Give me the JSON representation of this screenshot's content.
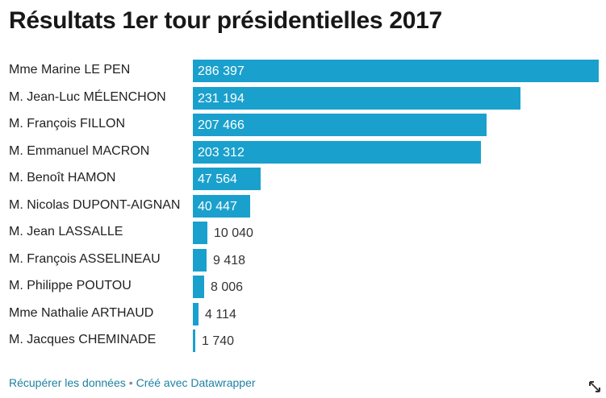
{
  "chart_data": {
    "type": "bar",
    "orientation": "horizontal",
    "title": "Résultats 1er tour présidentielles 2017",
    "categories": [
      "Mme Marine LE PEN",
      "M. Jean-Luc MÉLENCHON",
      "M. François FILLON",
      "M. Emmanuel MACRON",
      "M. Benoît HAMON",
      "M. Nicolas DUPONT-AIGNAN",
      "M. Jean LASSALLE",
      "M. François ASSELINEAU",
      "M. Philippe POUTOU",
      "Mme Nathalie ARTHAUD",
      "M. Jacques CHEMINADE"
    ],
    "values": [
      286397,
      231194,
      207466,
      203312,
      47564,
      40447,
      10040,
      9418,
      8006,
      4114,
      1740
    ],
    "value_labels": [
      "286 397",
      "231 194",
      "207 466",
      "203 312",
      "47 564",
      "40 447",
      "10 040",
      "9 418",
      "8 006",
      "4 114",
      "1 740"
    ],
    "xlim": [
      0,
      286397
    ],
    "xlabel": "",
    "ylabel": "",
    "grid": false,
    "bar_color": "#1aa0cd"
  },
  "footer": {
    "data_link": "Récupérer les données",
    "separator": "•",
    "credit_link": "Créé avec Datawrapper"
  },
  "icons": {
    "expand": "expand-arrows-icon"
  }
}
